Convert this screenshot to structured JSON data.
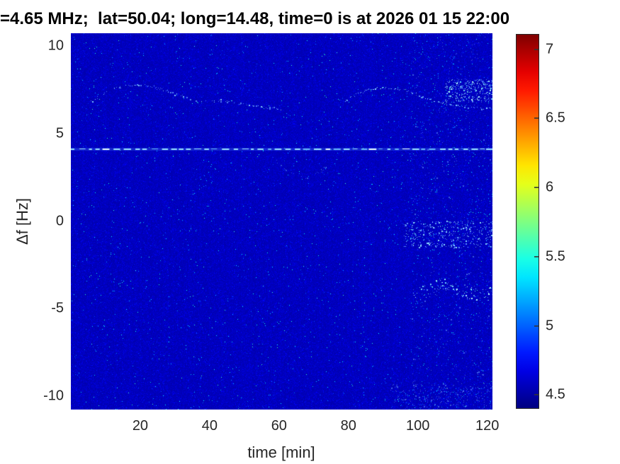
{
  "title": "=4.65 MHz;  lat=50.04; long=14.48, time=0 is at 2026 01 15 22:00",
  "chart_data": {
    "type": "heatmap",
    "title": "=4.65 MHz;  lat=50.04; long=14.48, time=0 is at 2026 01 15 22:00",
    "xlabel": "time [min]",
    "ylabel": "Δf [Hz]",
    "xlim": [
      0,
      121.5
    ],
    "ylim": [
      -10.77,
      10.73
    ],
    "clim": [
      4.4,
      7.11
    ],
    "x_ticks": [
      20,
      40,
      60,
      80,
      100,
      120
    ],
    "y_ticks": [
      10,
      5,
      0,
      -5,
      -10
    ],
    "colorbar_ticks": [
      7,
      6.5,
      6,
      5.5,
      5,
      4.5
    ],
    "colormap": "jet",
    "background_value": 4.53,
    "background_color": "#0000AE",
    "grid": false,
    "legend": "colorbar-right",
    "features": [
      {
        "name": "carrier-line",
        "type": "dashed_hline",
        "f": 4.1,
        "t_range": [
          0,
          121.5
        ],
        "colors": [
          "#96e1ff",
          "#eaffff",
          "#64b4fa"
        ]
      },
      {
        "name": "upper-trace-left",
        "type": "dotted_arc",
        "intensity": "faint",
        "points": [
          [
            6,
            6.8
          ],
          [
            9,
            7.25
          ],
          [
            13,
            7.6
          ],
          [
            17,
            7.75
          ],
          [
            20,
            7.8
          ],
          [
            24,
            7.65
          ],
          [
            28,
            7.4
          ],
          [
            31,
            7.2
          ],
          [
            34,
            7.0
          ],
          [
            37,
            6.8
          ],
          [
            40,
            6.85
          ],
          [
            44,
            6.9
          ],
          [
            47,
            6.8
          ],
          [
            50,
            6.65
          ],
          [
            54,
            6.55
          ],
          [
            58,
            6.45
          ],
          [
            61,
            6.4
          ]
        ]
      },
      {
        "name": "upper-trace-right",
        "type": "dotted_arc",
        "intensity": "medium",
        "points": [
          [
            79,
            6.85
          ],
          [
            82,
            7.2
          ],
          [
            85,
            7.45
          ],
          [
            88,
            7.6
          ],
          [
            91,
            7.6
          ],
          [
            94,
            7.55
          ],
          [
            97,
            7.45
          ],
          [
            100,
            7.2
          ],
          [
            103,
            6.95
          ],
          [
            106,
            6.8
          ],
          [
            109,
            6.65
          ],
          [
            113,
            6.55
          ],
          [
            117,
            6.45
          ],
          [
            121.5,
            6.4
          ]
        ]
      },
      {
        "name": "upper-right-cluster",
        "type": "speckle_patch",
        "intensity": "bright",
        "t_range": [
          108,
          121.5
        ],
        "f_range": [
          6.8,
          8.1
        ],
        "count": 280
      },
      {
        "name": "dip-trace",
        "type": "dotted_arc",
        "intensity": "very-faint",
        "points": [
          [
            58,
            3.7
          ],
          [
            60,
            3.3
          ],
          [
            62,
            2.95
          ],
          [
            64,
            2.7
          ],
          [
            66,
            2.5
          ],
          [
            68,
            2.45
          ],
          [
            70,
            2.6
          ],
          [
            72,
            2.85
          ],
          [
            74,
            3.15
          ]
        ]
      },
      {
        "name": "lower-band",
        "type": "speckle_patch",
        "intensity": "medium",
        "t_range": [
          96,
          121.5
        ],
        "f_range": [
          -1.5,
          0.0
        ],
        "count": 330
      },
      {
        "name": "lower-arc",
        "type": "speckle_arc",
        "intensity": "bright",
        "width": 0.4,
        "points": [
          [
            99,
            -4.4
          ],
          [
            102,
            -4.05
          ],
          [
            105,
            -3.8
          ],
          [
            108,
            -3.7
          ],
          [
            111,
            -3.85
          ],
          [
            114,
            -4.1
          ],
          [
            117,
            -4.3
          ],
          [
            120,
            -4.25
          ],
          [
            121.5,
            -4.15
          ]
        ]
      },
      {
        "name": "right-edge-noise",
        "type": "speckle_patch",
        "intensity": "dim",
        "t_range": [
          98,
          121.5
        ],
        "f_range": [
          -10.7,
          10.7
        ],
        "count": 420
      },
      {
        "name": "bottom-right-noise",
        "type": "speckle_patch",
        "intensity": "dim",
        "t_range": [
          92,
          121.5
        ],
        "f_range": [
          -10.7,
          -9.3
        ],
        "count": 160
      }
    ]
  }
}
